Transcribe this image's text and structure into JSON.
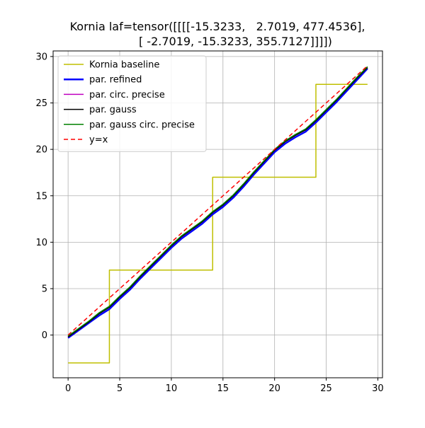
{
  "chart_data": {
    "type": "line",
    "title_lines": [
      "Kornia laf=tensor([[[[-15.3233,   2.7019, 477.4536],",
      "          [ -2.7019, -15.3233, 355.7127]]]])"
    ],
    "xlabel": "",
    "ylabel": "",
    "xlim": [
      -1.45,
      30.45
    ],
    "ylim": [
      -4.6,
      30.6
    ],
    "xticks": [
      0,
      5,
      10,
      15,
      20,
      25,
      30
    ],
    "yticks": [
      0,
      5,
      10,
      15,
      20,
      25,
      30
    ],
    "grid": true,
    "legend_position": "top-left",
    "x": [
      0,
      1,
      2,
      3,
      4,
      5,
      6,
      7,
      8,
      9,
      10,
      11,
      12,
      13,
      14,
      15,
      16,
      17,
      18,
      19,
      20,
      21,
      22,
      23,
      24,
      25,
      26,
      27,
      28,
      29
    ],
    "series": [
      {
        "name": "Kornia baseline",
        "color": "#bfbf00",
        "dash": "solid",
        "width": 1.5,
        "step": "post",
        "values": [
          -3,
          -3,
          -3,
          -3,
          7,
          7,
          7,
          7,
          7,
          7,
          7,
          7,
          7,
          7,
          17,
          17,
          17,
          17,
          17,
          17,
          17,
          17,
          17,
          17,
          27,
          27,
          27,
          27,
          27,
          27
        ]
      },
      {
        "name": "par. refined",
        "color": "#0000ff",
        "dash": "solid",
        "width": 2.5,
        "values": [
          -0.3,
          0.5,
          1.3,
          2.1,
          2.8,
          3.9,
          4.9,
          6.1,
          7.2,
          8.3,
          9.4,
          10.4,
          11.2,
          12.0,
          13.0,
          13.8,
          14.8,
          16.0,
          17.3,
          18.5,
          19.7,
          20.6,
          21.3,
          21.9,
          22.9,
          24.0,
          25.1,
          26.3,
          27.5,
          28.7
        ]
      },
      {
        "name": "par. circ. precise",
        "color": "#bf00bf",
        "dash": "solid",
        "width": 1.5,
        "values": [
          -0.2,
          0.6,
          1.4,
          2.3,
          3.0,
          4.1,
          5.1,
          6.3,
          7.4,
          8.5,
          9.6,
          10.6,
          11.4,
          12.2,
          13.2,
          14.0,
          15.0,
          16.2,
          17.5,
          18.7,
          19.9,
          20.8,
          21.5,
          22.1,
          23.1,
          24.2,
          25.3,
          26.5,
          27.7,
          28.8
        ]
      },
      {
        "name": "par. gauss",
        "color": "#000000",
        "dash": "solid",
        "width": 1.5,
        "values": [
          -0.2,
          0.6,
          1.4,
          2.3,
          3.0,
          4.1,
          5.1,
          6.3,
          7.4,
          8.5,
          9.6,
          10.6,
          11.4,
          12.2,
          13.2,
          14.0,
          15.0,
          16.2,
          17.5,
          18.7,
          19.9,
          20.8,
          21.5,
          22.1,
          23.1,
          24.2,
          25.3,
          26.5,
          27.7,
          28.8
        ]
      },
      {
        "name": "par. gauss circ. precise",
        "color": "#008000",
        "dash": "solid",
        "width": 1.5,
        "values": [
          -0.1,
          0.7,
          1.5,
          2.4,
          3.1,
          4.2,
          5.2,
          6.4,
          7.5,
          8.6,
          9.7,
          10.7,
          11.5,
          12.3,
          13.3,
          14.1,
          15.1,
          16.3,
          17.6,
          18.8,
          20.0,
          20.9,
          21.6,
          22.2,
          23.2,
          24.3,
          25.4,
          26.6,
          27.8,
          28.9
        ]
      },
      {
        "name": "y=x",
        "color": "#ff0000",
        "dash": "dashed",
        "width": 1.5,
        "values": [
          0,
          1,
          2,
          3,
          4,
          5,
          6,
          7,
          8,
          9,
          10,
          11,
          12,
          13,
          14,
          15,
          16,
          17,
          18,
          19,
          20,
          21,
          22,
          23,
          24,
          25,
          26,
          27,
          28,
          29
        ]
      }
    ]
  }
}
